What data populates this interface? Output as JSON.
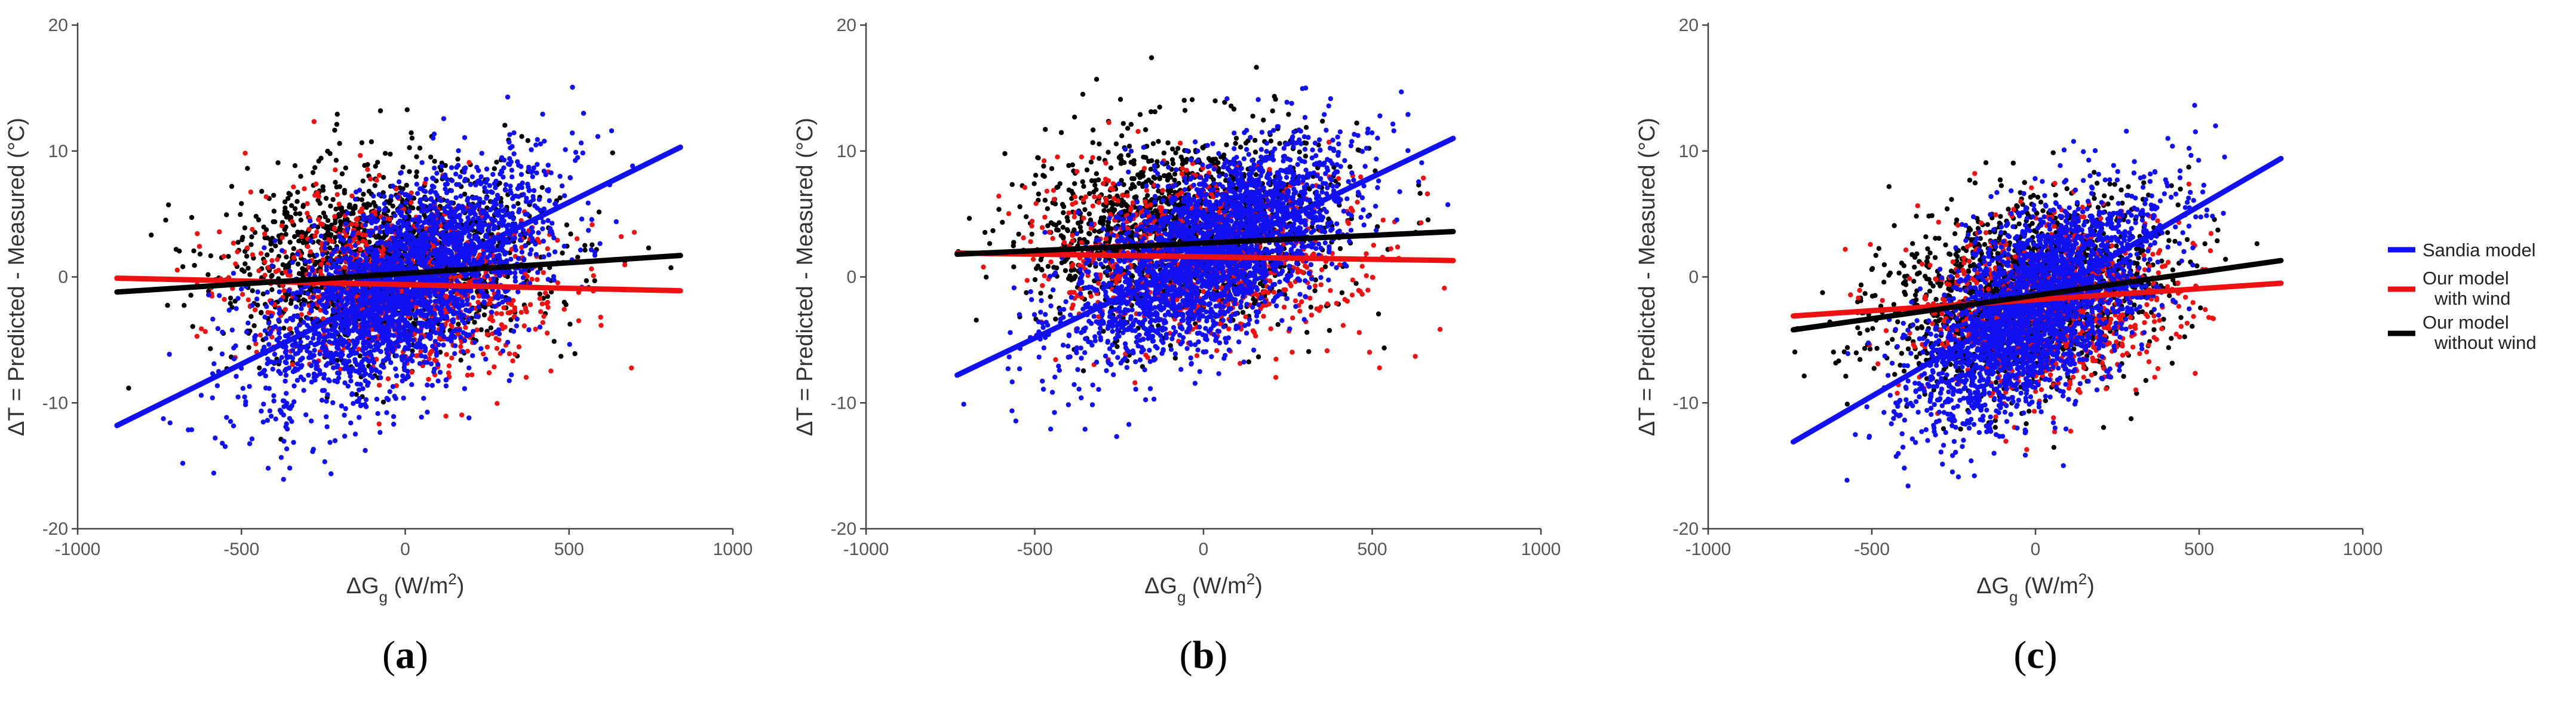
{
  "colors": {
    "sandia": "#1010f0",
    "with_wind": "#ee1111",
    "without_wind": "#000000",
    "axis": "#444444"
  },
  "legend": {
    "items": [
      {
        "label_lines": [
          "Sandia model"
        ],
        "color": "#1010f0"
      },
      {
        "label_lines": [
          "Our model",
          "with wind"
        ],
        "color": "#ee1111"
      },
      {
        "label_lines": [
          "Our model",
          "without wind"
        ],
        "color": "#000000"
      }
    ]
  },
  "chart_data": [
    {
      "type": "scatter",
      "panel_label": "(a)",
      "xlabel": "ΔGg (W/m2)",
      "ylabel": "ΔT = Predicted - Measured (°C)",
      "xlim": [
        -1000,
        1000
      ],
      "ylim": [
        -20,
        20
      ],
      "xticks": [
        -1000,
        -500,
        0,
        500,
        1000
      ],
      "yticks": [
        -20,
        -10,
        0,
        10,
        20
      ],
      "grid": false,
      "x_range": [
        -880,
        840
      ],
      "series": [
        {
          "name": "Sandia model",
          "color": "#1010f0",
          "fit_line": [
            [
              -880,
              -11.8
            ],
            [
              840,
              10.3
            ]
          ],
          "cloud": {
            "x_mean": 0,
            "x_sd": 210,
            "y_at_zero": -0.7,
            "y_sd": 3.6
          }
        },
        {
          "name": "Our model with wind",
          "color": "#ee1111",
          "fit_line": [
            [
              -880,
              -0.1
            ],
            [
              840,
              -1.1
            ]
          ],
          "cloud": {
            "x_mean": 0,
            "x_sd": 240,
            "y_at_zero": -0.5,
            "y_sd": 3.5
          }
        },
        {
          "name": "Our model without wind",
          "color": "#000000",
          "fit_line": [
            [
              -880,
              -1.2
            ],
            [
              840,
              1.7
            ]
          ],
          "cloud": {
            "x_mean": -60,
            "x_sd": 230,
            "y_at_zero": 1.5,
            "y_sd": 3.8
          }
        }
      ]
    },
    {
      "type": "scatter",
      "panel_label": "(b)",
      "xlabel": "ΔGg (W/m2)",
      "ylabel": "ΔT = Predicted - Measured (°C)",
      "xlim": [
        -1000,
        1000
      ],
      "ylim": [
        -20,
        20
      ],
      "xticks": [
        -1000,
        -500,
        0,
        500,
        1000
      ],
      "yticks": [
        -20,
        -10,
        0,
        10,
        20
      ],
      "grid": false,
      "x_range": [
        -730,
        740
      ],
      "series": [
        {
          "name": "Sandia model",
          "color": "#1010f0",
          "fit_line": [
            [
              -730,
              -7.8
            ],
            [
              740,
              11.0
            ]
          ],
          "cloud": {
            "x_mean": 20,
            "x_sd": 200,
            "y_at_zero": 1.6,
            "y_sd": 3.4
          }
        },
        {
          "name": "Our model with wind",
          "color": "#ee1111",
          "fit_line": [
            [
              -730,
              1.9
            ],
            [
              740,
              1.3
            ]
          ],
          "cloud": {
            "x_mean": 0,
            "x_sd": 230,
            "y_at_zero": 1.7,
            "y_sd": 3.3
          }
        },
        {
          "name": "Our model without wind",
          "color": "#000000",
          "fit_line": [
            [
              -730,
              1.8
            ],
            [
              740,
              3.6
            ]
          ],
          "cloud": {
            "x_mean": -60,
            "x_sd": 220,
            "y_at_zero": 4.0,
            "y_sd": 3.6
          }
        }
      ]
    },
    {
      "type": "scatter",
      "panel_label": "(c)",
      "xlabel": "ΔGg (W/m2)",
      "ylabel": "ΔT = Predicted - Measured (°C)",
      "xlim": [
        -1000,
        1000
      ],
      "ylim": [
        -20,
        20
      ],
      "xticks": [
        -1000,
        -500,
        0,
        500,
        1000
      ],
      "yticks": [
        -20,
        -10,
        0,
        10,
        20
      ],
      "grid": false,
      "x_range": [
        -740,
        750
      ],
      "series": [
        {
          "name": "Sandia model",
          "color": "#1010f0",
          "fit_line": [
            [
              -740,
              -13.1
            ],
            [
              750,
              9.4
            ]
          ],
          "cloud": {
            "x_mean": 0,
            "x_sd": 180,
            "y_at_zero": -2.5,
            "y_sd": 3.6
          }
        },
        {
          "name": "Our model with wind",
          "color": "#ee1111",
          "fit_line": [
            [
              -740,
              -3.1
            ],
            [
              750,
              -0.5
            ]
          ],
          "cloud": {
            "x_mean": 40,
            "x_sd": 200,
            "y_at_zero": -2.2,
            "y_sd": 3.4
          }
        },
        {
          "name": "Our model without wind",
          "color": "#000000",
          "fit_line": [
            [
              -740,
              -4.2
            ],
            [
              750,
              1.3
            ]
          ],
          "cloud": {
            "x_mean": -40,
            "x_sd": 210,
            "y_at_zero": -1.5,
            "y_sd": 3.6
          }
        }
      ]
    }
  ]
}
